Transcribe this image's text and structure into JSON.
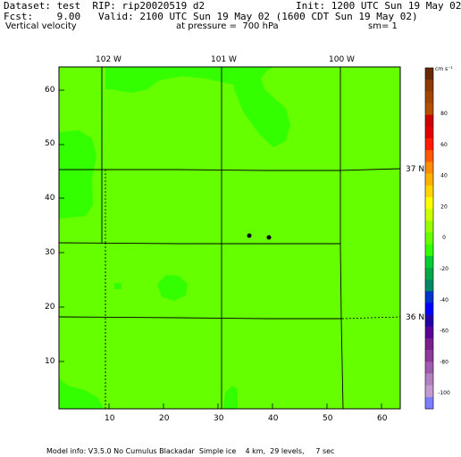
{
  "header": {
    "dataset": "Dataset: test  RIP: rip20020519 d2",
    "init": "Init: 1200 UTC Sun 19 May 02",
    "fcst": "Fcst:    9.00",
    "valid": "Valid: 2100 UTC Sun 19 May 02 (1600 CDT Sun 19 May 02)",
    "field": "Vertical velocity",
    "pressure": "at pressure =  700 hPa",
    "sm": "sm= 1"
  },
  "map": {
    "x_ticks": [
      "10",
      "20",
      "30",
      "40",
      "50",
      "60"
    ],
    "y_ticks": [
      "10",
      "20",
      "30",
      "40",
      "50",
      "60"
    ],
    "longitude_labels": [
      "102 W",
      "101 W",
      "100 W"
    ],
    "latitude_labels": [
      "37 N",
      "36 N"
    ],
    "colors": {
      "background_field": "#66ff00",
      "upward_patch": "#33ff00",
      "lines": "#000000"
    }
  },
  "colorbar": {
    "unit": "cm s⁻¹",
    "tick_labels": [
      "80",
      "60",
      "40",
      "20",
      "0",
      "-20",
      "-40",
      "-60",
      "-80",
      "-100"
    ],
    "colors": [
      "#6a2a00",
      "#8b3a00",
      "#a04600",
      "#b54f00",
      "#cc0000",
      "#e00000",
      "#ff1a00",
      "#ff5a00",
      "#ff8c00",
      "#ffb000",
      "#ffd500",
      "#ffff00",
      "#ccff00",
      "#99ff00",
      "#66ff00",
      "#33ff00",
      "#00cc33",
      "#00aa44",
      "#008866",
      "#0033cc",
      "#0000ff",
      "#2200aa",
      "#5a0099",
      "#7a1f8a",
      "#8c3a99",
      "#a05aad",
      "#b27fc0",
      "#c49bd0",
      "#7d7dff"
    ]
  },
  "footer": {
    "model_info": "Model info: V3.5.0 No Cumulus Blackadar  Simple ice    4 km,  29 levels,     7 sec"
  }
}
